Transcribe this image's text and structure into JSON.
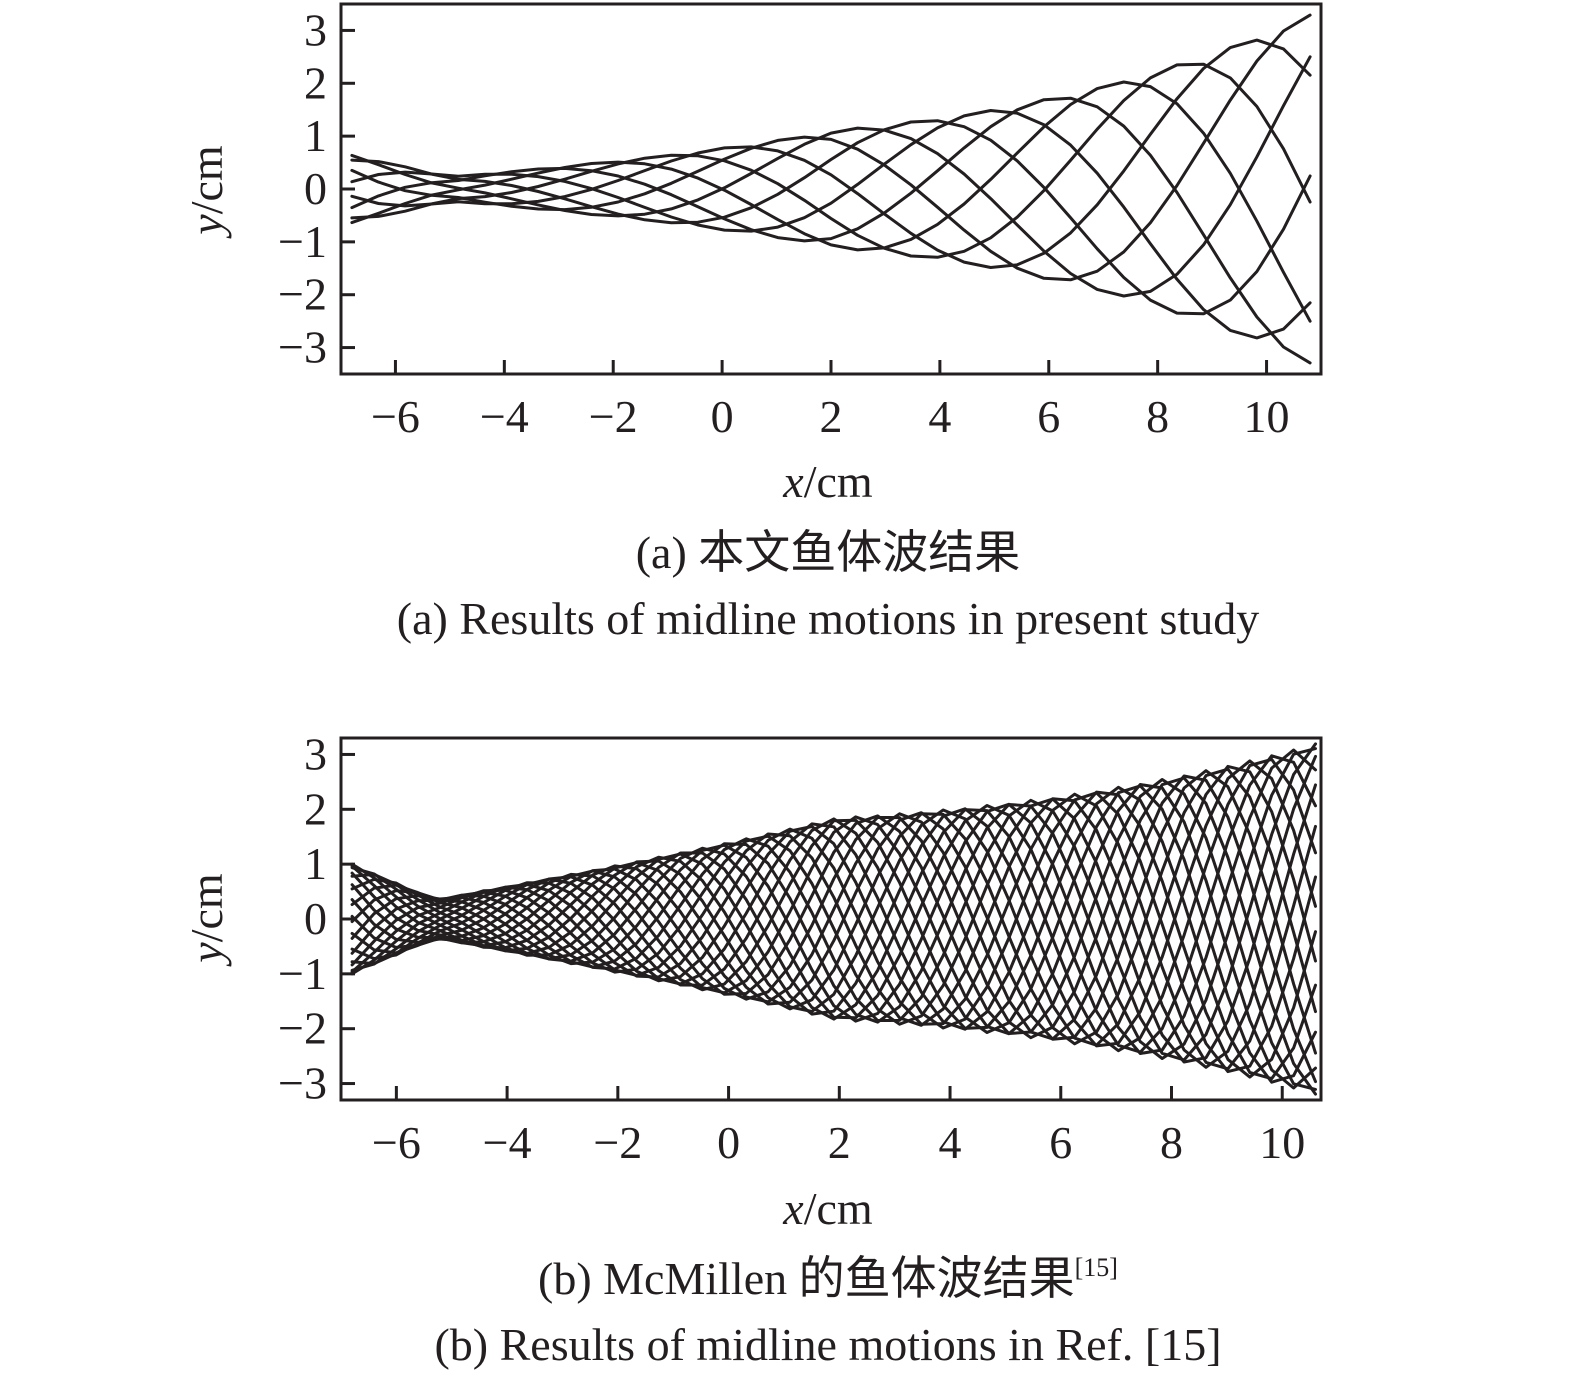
{
  "chart_data": [
    {
      "type": "line",
      "panel": "a",
      "xlabel_var": "x",
      "xlabel_unit": "/cm",
      "ylabel_var": "y",
      "ylabel_unit": "/cm",
      "xlim": [
        -7,
        11
      ],
      "ylim": [
        -3.5,
        3.5
      ],
      "xticks": [
        -6,
        -4,
        -2,
        0,
        2,
        4,
        6,
        8,
        10
      ],
      "yticks": [
        3,
        2,
        1,
        0,
        -1,
        -2,
        -3
      ],
      "xtick_labels": [
        "−6",
        "−4",
        "−2",
        "0",
        "2",
        "4",
        "6",
        "8",
        "10"
      ],
      "ytick_labels": [
        "3",
        "2",
        "1",
        "0",
        "−1",
        "−2",
        "−3"
      ],
      "caption_cn": "(a) 本文鱼体波结果",
      "caption_en": "(a) Results of midline motions in present study",
      "wave": {
        "x_start": -6.8,
        "x_end": 10.8,
        "samples": 36,
        "phase_count": 8,
        "amp_head": 0.65,
        "amp_taper_x": -5.0,
        "amp_mid": 0.9,
        "amp_tail": 3.3,
        "wavelength": 9.5
      }
    },
    {
      "type": "line",
      "panel": "b",
      "xlabel_var": "x",
      "xlabel_unit": "/cm",
      "ylabel_var": "y",
      "ylabel_unit": "/cm",
      "xlim": [
        -7,
        10.7
      ],
      "ylim": [
        -3.3,
        3.3
      ],
      "xticks": [
        -6,
        -4,
        -2,
        0,
        2,
        4,
        6,
        8,
        10
      ],
      "yticks": [
        3,
        2,
        1,
        0,
        -1,
        -2,
        -3
      ],
      "xtick_labels": [
        "−6",
        "−4",
        "−2",
        "0",
        "2",
        "4",
        "6",
        "8",
        "10"
      ],
      "ytick_labels": [
        "3",
        "2",
        "1",
        "0",
        "−1",
        "−2",
        "−3"
      ],
      "caption_cn": "(b) McMillen 的鱼体波结果",
      "caption_ref": "[15]",
      "caption_en": "(b) Results of midline motions in Ref. [15]",
      "wave": {
        "x_start": -6.8,
        "x_end": 10.6,
        "samples": 44,
        "phase_count": 20,
        "amp_head": 1.0,
        "amp_taper_x": -5.3,
        "amp_mid": 1.7,
        "amp_tail": 3.2,
        "wavelength": 5.2
      }
    }
  ]
}
